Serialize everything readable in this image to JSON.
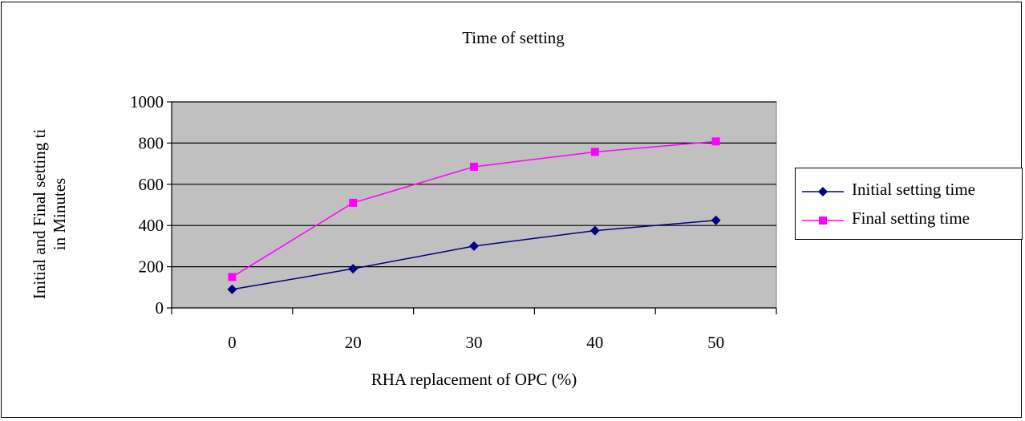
{
  "chart_data": {
    "type": "line",
    "title": "Time of setting",
    "xlabel": "RHA replacement of OPC (%)",
    "ylabel_lines": [
      "Initial and Final setting ti",
      "in Minutes"
    ],
    "categories": [
      "0",
      "20",
      "30",
      "40",
      "50"
    ],
    "ylim": [
      0,
      1000
    ],
    "yticks": [
      0,
      200,
      400,
      600,
      800,
      1000
    ],
    "grid": true,
    "plot_background": "#c0c0c0",
    "legend_position": "right",
    "series": [
      {
        "name": "Initial setting time",
        "values": [
          90,
          190,
          300,
          375,
          425
        ],
        "color": "#000080",
        "marker": "diamond"
      },
      {
        "name": "Final setting time",
        "values": [
          150,
          510,
          685,
          757,
          808
        ],
        "color": "#ff00ff",
        "marker": "square"
      }
    ]
  }
}
